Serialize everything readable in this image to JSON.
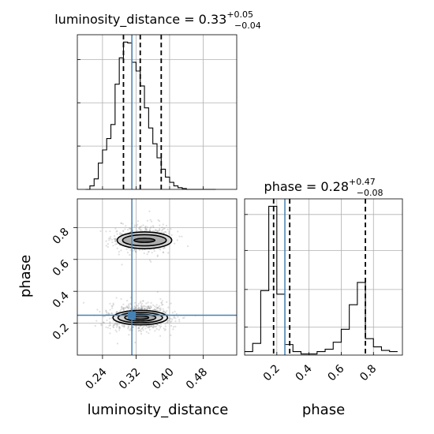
{
  "chart_data": [
    {
      "type": "histogram",
      "panel": "luminosity_distance-1d",
      "title": "luminosity_distance = 0.33",
      "title_plus": "+0.05",
      "title_minus": "−0.04",
      "xlim": [
        0.18,
        0.56
      ],
      "bin_width": 0.01,
      "bin_start": 0.2,
      "counts": [
        0,
        4,
        12,
        30,
        45,
        58,
        74,
        120,
        150,
        168,
        167,
        145,
        135,
        118,
        93,
        70,
        52,
        36,
        23,
        14,
        8,
        4,
        2,
        1,
        0,
        0,
        0,
        0,
        0,
        0,
        0
      ],
      "quantiles": [
        0.29,
        0.33,
        0.38
      ],
      "truth": 0.31,
      "grid": true
    },
    {
      "type": "histogram",
      "panel": "phase-1d",
      "title": "phase = 0.28",
      "title_plus": "+0.47",
      "title_minus": "−0.08",
      "xlim": [
        0.0,
        0.98
      ],
      "xticks": [
        "0.2",
        "0.4",
        "0.6",
        "0.8"
      ],
      "xlabel": "phase",
      "bin_width": 0.05,
      "bin_start": 0.0,
      "counts": [
        3,
        10,
        55,
        127,
        52,
        9,
        3,
        1,
        1,
        3,
        5,
        11,
        22,
        43,
        62,
        14,
        7,
        4,
        3
      ],
      "quantiles": [
        0.18,
        0.28,
        0.75
      ],
      "truth": 0.25,
      "grid": true
    },
    {
      "type": "scatter",
      "panel": "phase-vs-luminosity_distance",
      "xlabel": "luminosity_distance",
      "ylabel": "phase",
      "xlim": [
        0.18,
        0.56
      ],
      "ylim": [
        0.0,
        0.98
      ],
      "xticks": [
        "0.24",
        "0.32",
        "0.40",
        "0.48"
      ],
      "yticks": [
        "0.2",
        "0.4",
        "0.6",
        "0.8"
      ],
      "truth": [
        0.31,
        0.25
      ],
      "modes": [
        {
          "center": [
            0.33,
            0.24
          ],
          "sx": 0.035,
          "sy": 0.04,
          "weight": 0.68
        },
        {
          "center": [
            0.335,
            0.73
          ],
          "sx": 0.035,
          "sy": 0.045,
          "weight": 0.32
        }
      ],
      "contours": [
        {
          "center": [
            0.33,
            0.235
          ],
          "rx": [
            0.065,
            0.053,
            0.037,
            0.02
          ],
          "ry": [
            0.09,
            0.065,
            0.043,
            0.022
          ]
        },
        {
          "center": [
            0.34,
            0.72
          ],
          "rx": [
            0.065,
            0.052,
            0.025
          ],
          "ry": [
            0.105,
            0.07,
            0.025
          ]
        }
      ],
      "grid": true
    }
  ],
  "colors": {
    "truth": "#4682b4",
    "contour": "#000000",
    "samples": "#8c8c8c",
    "grid": "#b0b0b0"
  }
}
